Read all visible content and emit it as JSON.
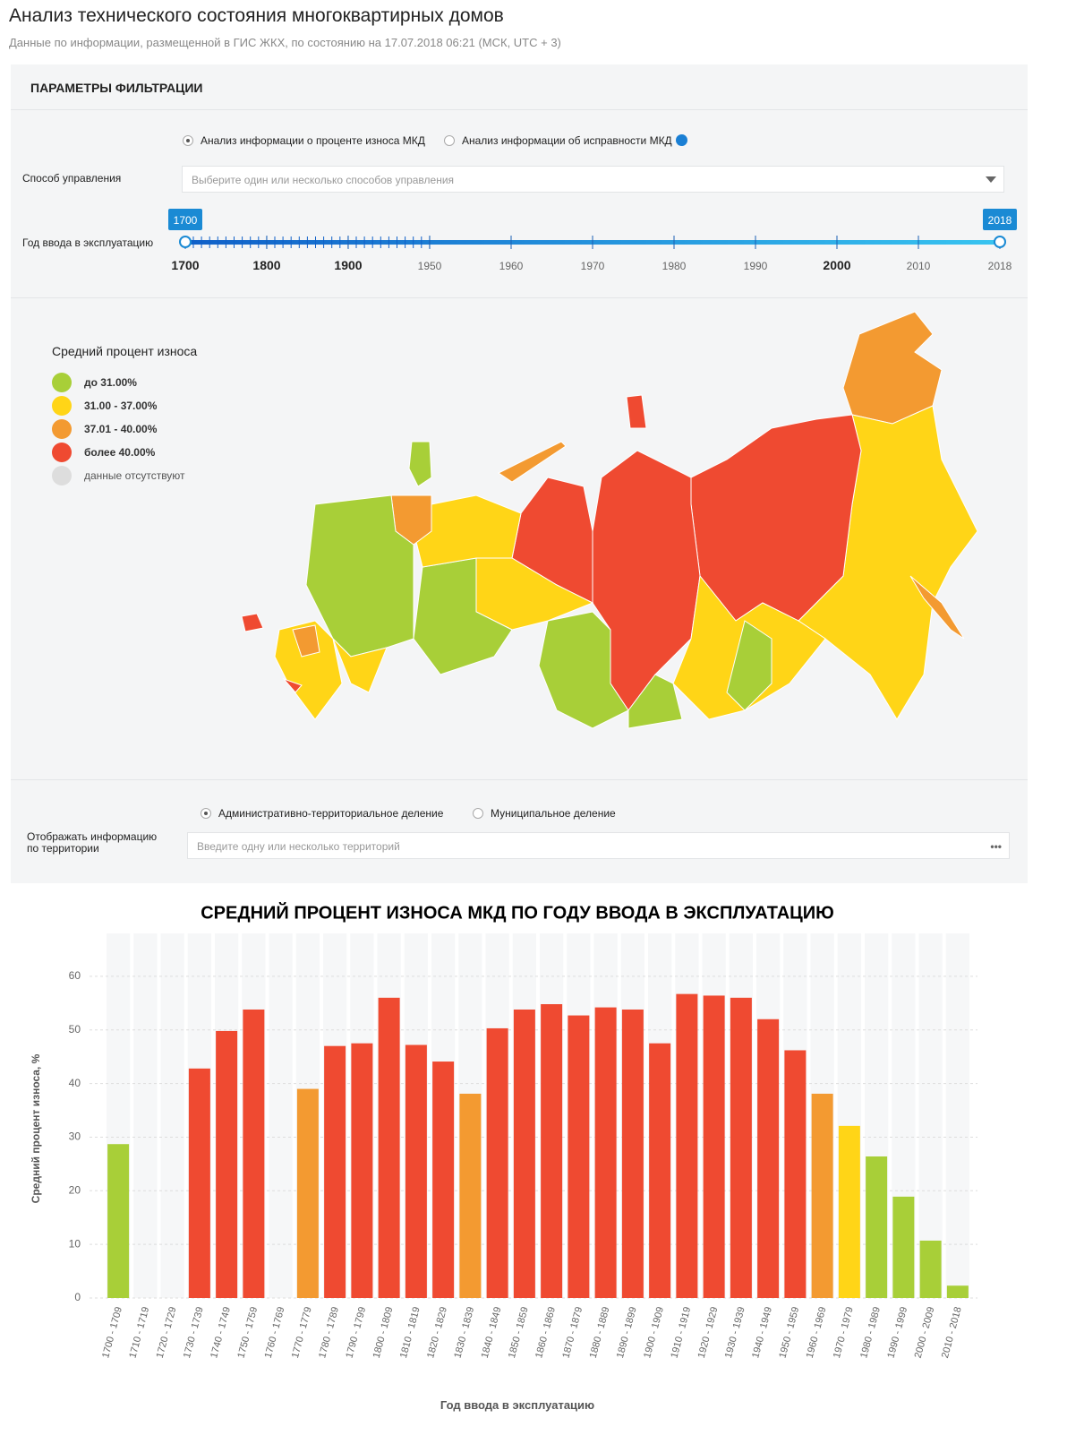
{
  "header": {
    "title": "Анализ технического состояния многоквартирных домов",
    "subtitle": "Данные по информации, размещенной в ГИС ЖКХ, по состоянию на 17.07.2018 06:21 (МСК, UTC + 3)"
  },
  "filters": {
    "title": "ПАРАМЕТРЫ ФИЛЬТРАЦИИ",
    "analysis_options": [
      "Анализ информации о проценте износа МКД",
      "Анализ информации об исправности МКД"
    ],
    "management_label": "Способ управления",
    "management_placeholder": "Выберите один или несколько способов управления",
    "year_label": "Год ввода в эксплуатацию",
    "year_range": [
      1700,
      2018
    ],
    "year_ticks": [
      1700,
      1800,
      1900,
      1950,
      1960,
      1970,
      1980,
      1990,
      2000,
      2010,
      2018
    ]
  },
  "map": {
    "legend_title": "Средний процент износа",
    "legend": [
      {
        "label": "до 31.00%",
        "color": "#a8cf38"
      },
      {
        "label": "31.00 - 37.00%",
        "color": "#ffd517"
      },
      {
        "label": "37.01 - 40.00%",
        "color": "#f39a31"
      },
      {
        "label": "более 40.00%",
        "color": "#ef4a31"
      },
      {
        "label": "данные отсутствуют",
        "color": "#dddddd"
      }
    ]
  },
  "territory": {
    "options": [
      "Административно-территориальное деление",
      "Муниципальное деление"
    ],
    "label": "Отображать информацию по территории",
    "placeholder": "Введите одну или несколько территорий"
  },
  "chart_data": {
    "type": "bar",
    "title": "СРЕДНИЙ ПРОЦЕНТ ИЗНОСА МКД ПО ГОДУ ВВОДА В ЭКСПЛУАТАЦИЮ",
    "x_label": "Год ввода в эксплуатацию",
    "y_label": "Средний процент износа, %",
    "categories": [
      "1700 - 1709",
      "1710 - 1719",
      "1720 - 1729",
      "1730 - 1739",
      "1740 - 1749",
      "1750 - 1759",
      "1760 - 1769",
      "1770 - 1779",
      "1780 - 1789",
      "1790 - 1799",
      "1800 - 1809",
      "1810 - 1819",
      "1820 - 1829",
      "1830 - 1839",
      "1840 - 1849",
      "1850 - 1859",
      "1860 - 1869",
      "1870 - 1879",
      "1880 - 1889",
      "1890 - 1899",
      "1900 - 1909",
      "1910 - 1919",
      "1920 - 1929",
      "1930 - 1939",
      "1940 - 1949",
      "1950 - 1959",
      "1960 - 1969",
      "1970 - 1979",
      "1980 - 1989",
      "1990 - 1999",
      "2000 - 2009",
      "2010 - 2018"
    ],
    "values": [
      28.7,
      null,
      null,
      42.8,
      49.8,
      53.8,
      null,
      39.0,
      47.0,
      47.5,
      56.0,
      47.2,
      44.1,
      38.1,
      50.3,
      53.8,
      54.8,
      52.7,
      54.2,
      53.8,
      47.5,
      56.7,
      56.4,
      56.0,
      52.0,
      46.2,
      38.1,
      32.1,
      26.4,
      18.9,
      10.7,
      2.3
    ],
    "colors": [
      "#a8cf38",
      null,
      null,
      "#ef4a31",
      "#ef4a31",
      "#ef4a31",
      null,
      "#f39a31",
      "#ef4a31",
      "#ef4a31",
      "#ef4a31",
      "#ef4a31",
      "#ef4a31",
      "#f39a31",
      "#ef4a31",
      "#ef4a31",
      "#ef4a31",
      "#ef4a31",
      "#ef4a31",
      "#ef4a31",
      "#ef4a31",
      "#ef4a31",
      "#ef4a31",
      "#ef4a31",
      "#ef4a31",
      "#ef4a31",
      "#f39a31",
      "#ffd517",
      "#a8cf38",
      "#a8cf38",
      "#a8cf38",
      "#a8cf38"
    ],
    "ylim": [
      0,
      68
    ],
    "yticks": [
      0,
      10,
      20,
      30,
      40,
      50,
      60
    ],
    "grid": true
  }
}
